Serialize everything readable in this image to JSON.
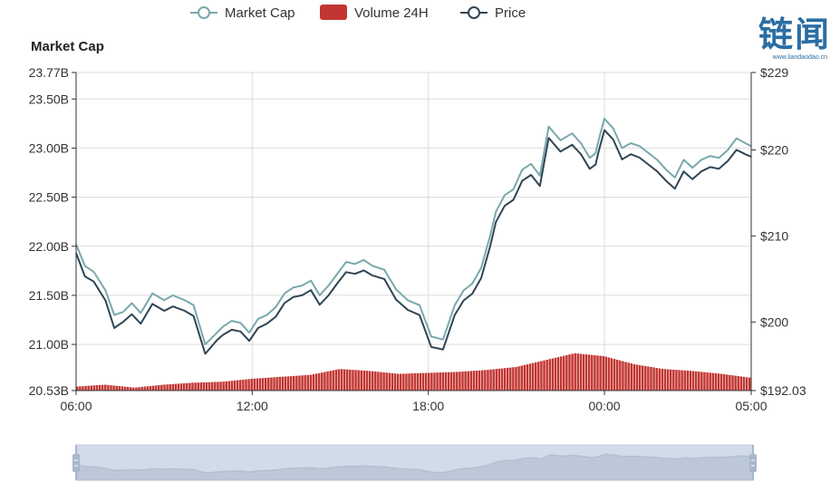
{
  "chart_data": {
    "type": "line",
    "legend": [
      {
        "name": "Market Cap",
        "symbol": "line-circle",
        "color": "#79a8ac"
      },
      {
        "name": "Volume 24H",
        "symbol": "rect",
        "color": "#c23531"
      },
      {
        "name": "Price",
        "symbol": "line-circle",
        "color": "#2f4554"
      }
    ],
    "y_left_title": "Market Cap",
    "y_left_range": [
      20.53,
      23.77
    ],
    "y_left_ticks": [
      "20.53B",
      "21.00B",
      "21.50B",
      "22.00B",
      "22.50B",
      "23.00B",
      "23.50B",
      "23.77B"
    ],
    "y_left_tick_values": [
      20.53,
      21.0,
      21.5,
      22.0,
      22.5,
      23.0,
      23.5,
      23.77
    ],
    "y_right_range": [
      192.03,
      229
    ],
    "y_right_ticks": [
      "$192.03",
      "$200",
      "$210",
      "$220",
      "$229"
    ],
    "y_right_tick_values": [
      192.03,
      200,
      210,
      220,
      229
    ],
    "x_range_hours": [
      0,
      23
    ],
    "x_ticks": [
      "06:00",
      "12:00",
      "18:00",
      "00:00",
      "05:00"
    ],
    "x_tick_values": [
      0,
      6,
      12,
      18,
      23
    ],
    "series": [
      {
        "name": "Market Cap",
        "unit": "B USD",
        "x": [
          0,
          0.3,
          0.6,
          1.0,
          1.3,
          1.6,
          1.9,
          2.2,
          2.6,
          3.0,
          3.3,
          3.7,
          4.0,
          4.4,
          4.8,
          5.0,
          5.3,
          5.6,
          5.9,
          6.2,
          6.5,
          6.8,
          7.1,
          7.4,
          7.7,
          8.0,
          8.3,
          8.6,
          8.9,
          9.2,
          9.5,
          9.8,
          10.1,
          10.5,
          10.9,
          11.3,
          11.7,
          12.1,
          12.5,
          12.9,
          13.2,
          13.5,
          13.8,
          14.1,
          14.3,
          14.6,
          14.9,
          15.2,
          15.5,
          15.8,
          16.1,
          16.5,
          16.9,
          17.2,
          17.5,
          17.7,
          17.8,
          18.0,
          18.3,
          18.6,
          18.9,
          19.2,
          19.5,
          19.8,
          20.1,
          20.4,
          20.7,
          21.0,
          21.3,
          21.6,
          21.9,
          22.2,
          22.5,
          22.8,
          23.0
        ],
        "values": [
          22.02,
          21.8,
          21.74,
          21.55,
          21.3,
          21.33,
          21.42,
          21.32,
          21.52,
          21.45,
          21.5,
          21.45,
          21.4,
          21.0,
          21.12,
          21.18,
          21.24,
          21.22,
          21.12,
          21.26,
          21.3,
          21.38,
          21.52,
          21.58,
          21.6,
          21.65,
          21.5,
          21.6,
          21.72,
          21.84,
          21.82,
          21.86,
          21.8,
          21.76,
          21.56,
          21.45,
          21.4,
          21.08,
          21.05,
          21.4,
          21.55,
          21.62,
          21.78,
          22.1,
          22.35,
          22.52,
          22.58,
          22.78,
          22.84,
          22.72,
          23.22,
          23.08,
          23.15,
          23.05,
          22.9,
          22.95,
          23.08,
          23.3,
          23.2,
          23.0,
          23.05,
          23.02,
          22.95,
          22.88,
          22.78,
          22.7,
          22.88,
          22.8,
          22.88,
          22.92,
          22.9,
          22.98,
          23.1,
          23.05,
          23.02
        ]
      },
      {
        "name": "Price",
        "unit": "USD",
        "x": [
          0,
          0.3,
          0.6,
          1.0,
          1.3,
          1.6,
          1.9,
          2.2,
          2.6,
          3.0,
          3.3,
          3.7,
          4.0,
          4.4,
          4.8,
          5.0,
          5.3,
          5.6,
          5.9,
          6.2,
          6.5,
          6.8,
          7.1,
          7.4,
          7.7,
          8.0,
          8.3,
          8.6,
          8.9,
          9.2,
          9.5,
          9.8,
          10.1,
          10.5,
          10.9,
          11.3,
          11.7,
          12.1,
          12.5,
          12.9,
          13.2,
          13.5,
          13.8,
          14.1,
          14.3,
          14.6,
          14.9,
          15.2,
          15.5,
          15.8,
          16.1,
          16.5,
          16.9,
          17.2,
          17.5,
          17.7,
          17.8,
          18.0,
          18.3,
          18.6,
          18.9,
          19.2,
          19.5,
          19.8,
          20.1,
          20.4,
          20.7,
          21.0,
          21.3,
          21.6,
          21.9,
          22.2,
          22.5,
          22.8,
          23.0
        ],
        "values": [
          208.0,
          205.3,
          204.7,
          202.5,
          199.3,
          200.0,
          200.9,
          199.8,
          202.1,
          201.3,
          201.8,
          201.3,
          200.7,
          196.3,
          197.9,
          198.5,
          199.1,
          198.9,
          197.8,
          199.3,
          199.8,
          200.6,
          202.2,
          202.9,
          203.1,
          203.7,
          202.0,
          203.1,
          204.5,
          205.8,
          205.6,
          206.0,
          205.4,
          205.0,
          202.6,
          201.4,
          200.8,
          197.1,
          196.8,
          200.8,
          202.5,
          203.3,
          205.1,
          208.7,
          211.6,
          213.5,
          214.2,
          216.4,
          217.1,
          215.8,
          221.4,
          219.8,
          220.6,
          219.5,
          217.8,
          218.3,
          219.8,
          222.3,
          221.2,
          218.9,
          219.5,
          219.1,
          218.3,
          217.5,
          216.4,
          215.5,
          217.5,
          216.6,
          217.5,
          218.0,
          217.8,
          218.7,
          220.0,
          219.5,
          219.2
        ]
      },
      {
        "name": "Volume 24H",
        "unit": "B USD",
        "x": [
          0,
          1,
          2,
          3,
          4,
          5,
          6,
          7,
          8,
          9,
          10,
          11,
          12,
          13,
          14,
          15,
          16,
          17,
          18,
          19,
          20,
          21,
          22,
          23
        ],
        "values": [
          0.04,
          0.06,
          0.03,
          0.06,
          0.08,
          0.09,
          0.12,
          0.14,
          0.16,
          0.22,
          0.2,
          0.17,
          0.18,
          0.19,
          0.21,
          0.24,
          0.31,
          0.38,
          0.35,
          0.27,
          0.22,
          0.2,
          0.17,
          0.13
        ]
      }
    ],
    "data_zoom": {
      "start_percent": 0,
      "end_percent": 100
    }
  },
  "logo": {
    "text": "链闻",
    "sub": "www.liandaodao.cn"
  }
}
